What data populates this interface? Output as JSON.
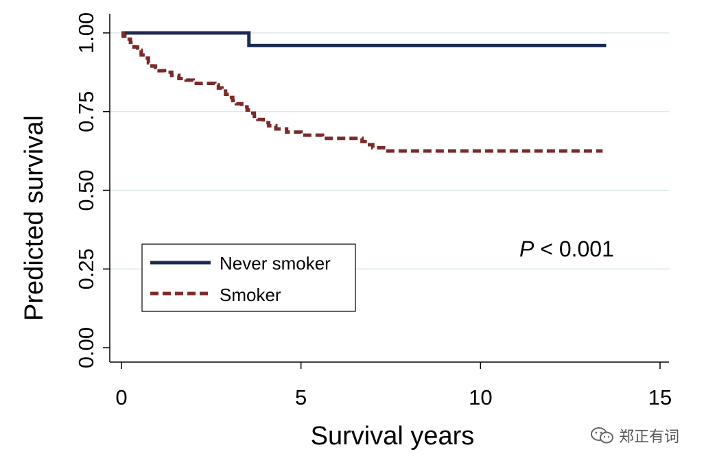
{
  "chart_data": {
    "type": "line",
    "title": "",
    "xlabel": "Survival years",
    "ylabel": "Predicted survival",
    "xlim": [
      0,
      15
    ],
    "ylim": [
      0,
      1
    ],
    "x_ticks": [
      "0",
      "5",
      "10",
      "15"
    ],
    "y_ticks": [
      "0.00",
      "0.25",
      "0.50",
      "0.75",
      "1.00"
    ],
    "grid": "horizontal",
    "legend_position": "left-middle",
    "annotation": {
      "italic": "P",
      "rest": " < 0.001"
    },
    "series": [
      {
        "name": "Never smoker",
        "color": "#1b2a52",
        "style": "solid",
        "steps": [
          [
            0,
            1.0
          ],
          [
            3.55,
            0.96
          ],
          [
            13.5,
            0.96
          ]
        ]
      },
      {
        "name": "Smoker",
        "color": "#7b2a2a",
        "style": "dashed",
        "steps": [
          [
            0,
            1.0
          ],
          [
            0.05,
            0.99
          ],
          [
            0.15,
            0.98
          ],
          [
            0.25,
            0.97
          ],
          [
            0.35,
            0.955
          ],
          [
            0.45,
            0.945
          ],
          [
            0.55,
            0.93
          ],
          [
            0.65,
            0.92
          ],
          [
            0.75,
            0.905
          ],
          [
            0.85,
            0.895
          ],
          [
            0.95,
            0.89
          ],
          [
            1.05,
            0.88
          ],
          [
            1.2,
            0.875
          ],
          [
            1.4,
            0.865
          ],
          [
            1.6,
            0.855
          ],
          [
            1.8,
            0.85
          ],
          [
            2.0,
            0.84
          ],
          [
            2.6,
            0.835
          ],
          [
            2.7,
            0.825
          ],
          [
            2.8,
            0.815
          ],
          [
            2.9,
            0.805
          ],
          [
            3.0,
            0.795
          ],
          [
            3.1,
            0.785
          ],
          [
            3.2,
            0.775
          ],
          [
            3.35,
            0.765
          ],
          [
            3.5,
            0.755
          ],
          [
            3.6,
            0.745
          ],
          [
            3.7,
            0.735
          ],
          [
            3.8,
            0.725
          ],
          [
            3.95,
            0.715
          ],
          [
            4.1,
            0.705
          ],
          [
            4.3,
            0.695
          ],
          [
            4.6,
            0.685
          ],
          [
            5.0,
            0.675
          ],
          [
            5.6,
            0.665
          ],
          [
            6.7,
            0.655
          ],
          [
            6.85,
            0.645
          ],
          [
            7.0,
            0.635
          ],
          [
            7.3,
            0.625
          ],
          [
            13.4,
            0.625
          ]
        ]
      }
    ]
  },
  "watermark": {
    "text": "郑正有词",
    "icon": "wechat-icon"
  }
}
